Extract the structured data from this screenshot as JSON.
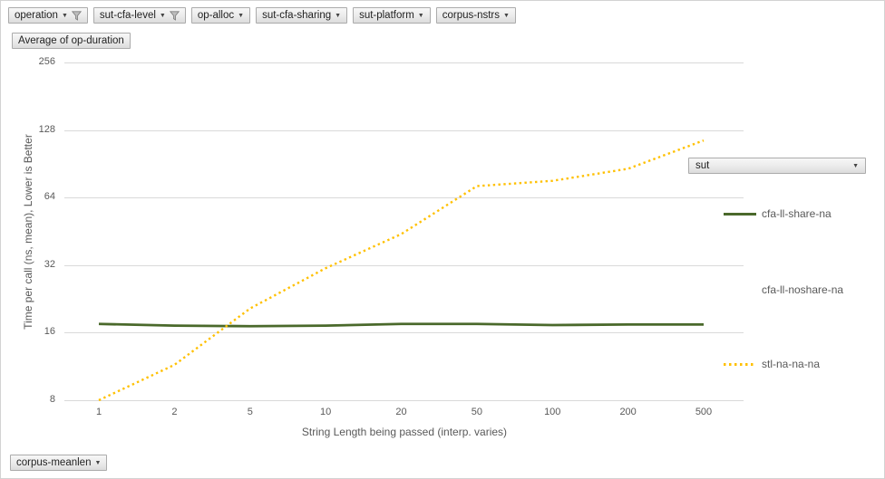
{
  "field_buttons": {
    "top": [
      {
        "label": "operation",
        "filtered": true
      },
      {
        "label": "sut-cfa-level",
        "filtered": true
      },
      {
        "label": "op-alloc",
        "filtered": false
      },
      {
        "label": "sut-cfa-sharing",
        "filtered": false
      },
      {
        "label": "sut-platform",
        "filtered": false
      },
      {
        "label": "corpus-nstrs",
        "filtered": false
      }
    ],
    "value_field": "Average of op-duration",
    "legend_field": "sut",
    "axis_field": "corpus-meanlen"
  },
  "icons": {
    "dropdown_arrow": "▼"
  },
  "colors": {
    "gridline": "#d9d9d9",
    "axis_text": "#595959",
    "series_green": "#4a692b",
    "series_yellow": "#ffc000"
  },
  "chart_data": {
    "type": "line",
    "x_categories": [
      "1",
      "2",
      "5",
      "10",
      "20",
      "50",
      "100",
      "200",
      "500"
    ],
    "xlabel": "String Length  being passed (interp. varies)",
    "ylabel": "Time per call (ns, mean),  Lower  is Better",
    "y_scale": "log2",
    "y_ticks": [
      256,
      128,
      64,
      32,
      16,
      8
    ],
    "ylim": [
      8,
      256
    ],
    "grid": "horizontal",
    "legend_position": "right",
    "series": [
      {
        "name": "cfa-ll-share-na",
        "color": "#4a692b",
        "line_style": "solid",
        "values": [
          17.5,
          17.2,
          17.1,
          17.2,
          17.5,
          17.5,
          17.3,
          17.4,
          17.4
        ]
      },
      {
        "name": "cfa-ll-noshare-na",
        "color": null,
        "line_style": "none",
        "values": []
      },
      {
        "name": "stl-na-na-na",
        "color": "#ffc000",
        "line_style": "dotted",
        "values": [
          8,
          11.5,
          20.5,
          31,
          44,
          72,
          76,
          86,
          115
        ]
      }
    ]
  }
}
